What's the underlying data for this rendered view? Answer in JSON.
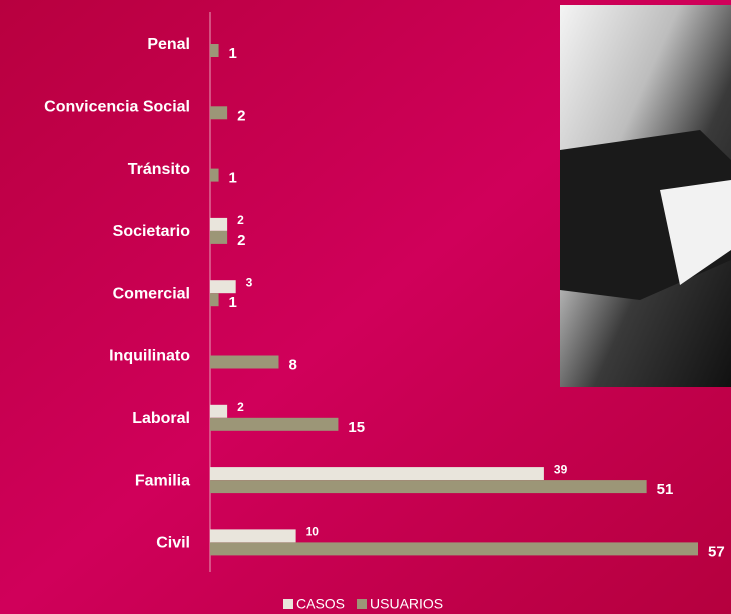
{
  "chart_data": {
    "type": "bar",
    "orientation": "horizontal",
    "categories": [
      "Penal",
      "Convicencia Social",
      "Tránsito",
      "Societario",
      "Comercial",
      "Inquilinato",
      "Laboral",
      "Familia",
      "Civil"
    ],
    "series": [
      {
        "name": "CASOS",
        "color": "#e9e5dc",
        "values": [
          null,
          null,
          null,
          2,
          3,
          null,
          2,
          39,
          10
        ]
      },
      {
        "name": "USUARIOS",
        "color": "#9c9677",
        "values": [
          1,
          2,
          1,
          2,
          1,
          8,
          15,
          51,
          57
        ]
      }
    ]
  }
}
